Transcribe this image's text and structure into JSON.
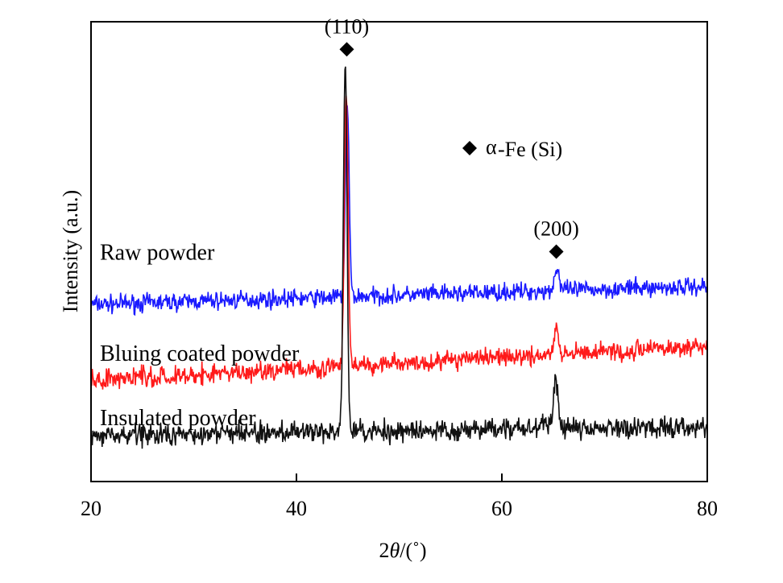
{
  "chart_data": {
    "type": "line",
    "xlabel_prefix": "2",
    "xlabel_theta": "θ",
    "xlabel_suffix": "/(˚)",
    "ylabel": "Intensity (a.u.)",
    "xlim": [
      20,
      80
    ],
    "ylim": [
      0,
      100
    ],
    "x_ticks": [
      {
        "value": 20,
        "label": "20"
      },
      {
        "value": 40,
        "label": "40"
      },
      {
        "value": 60,
        "label": "60"
      },
      {
        "value": 80,
        "label": "80"
      }
    ],
    "grid": false,
    "legend": {
      "position": "upper-right",
      "marker": "diamond",
      "greek": "α",
      "text": "-Fe (Si)"
    },
    "peaks": [
      {
        "x": 44.9,
        "y": 94,
        "label": "(110)"
      },
      {
        "x": 65.3,
        "y": 50,
        "label": "(200)"
      }
    ],
    "series": [
      {
        "name": "Raw powder",
        "color": "#1a1aff",
        "baseline_start": 38.5,
        "baseline_end": 42.5,
        "noise": 1.2,
        "peaks": [
          {
            "x": 44.95,
            "height": 42,
            "width": 0.18
          },
          {
            "x": 65.35,
            "height": 5.0,
            "width": 0.22
          }
        ],
        "seed": 7
      },
      {
        "name": "Bluing coated powder",
        "color": "#ff1a1a",
        "baseline_start": 22.0,
        "baseline_end": 29.5,
        "noise": 1.3,
        "peaks": [
          {
            "x": 44.85,
            "height": 60,
            "width": 0.18
          },
          {
            "x": 65.3,
            "height": 6.0,
            "width": 0.22
          }
        ],
        "seed": 19
      },
      {
        "name": "Insulated powder",
        "color": "#111111",
        "baseline_start": 10.0,
        "baseline_end": 12.0,
        "noise": 1.4,
        "peaks": [
          {
            "x": 44.75,
            "height": 80,
            "width": 0.18
          },
          {
            "x": 65.25,
            "height": 10.5,
            "width": 0.22
          }
        ],
        "seed": 31
      }
    ]
  }
}
